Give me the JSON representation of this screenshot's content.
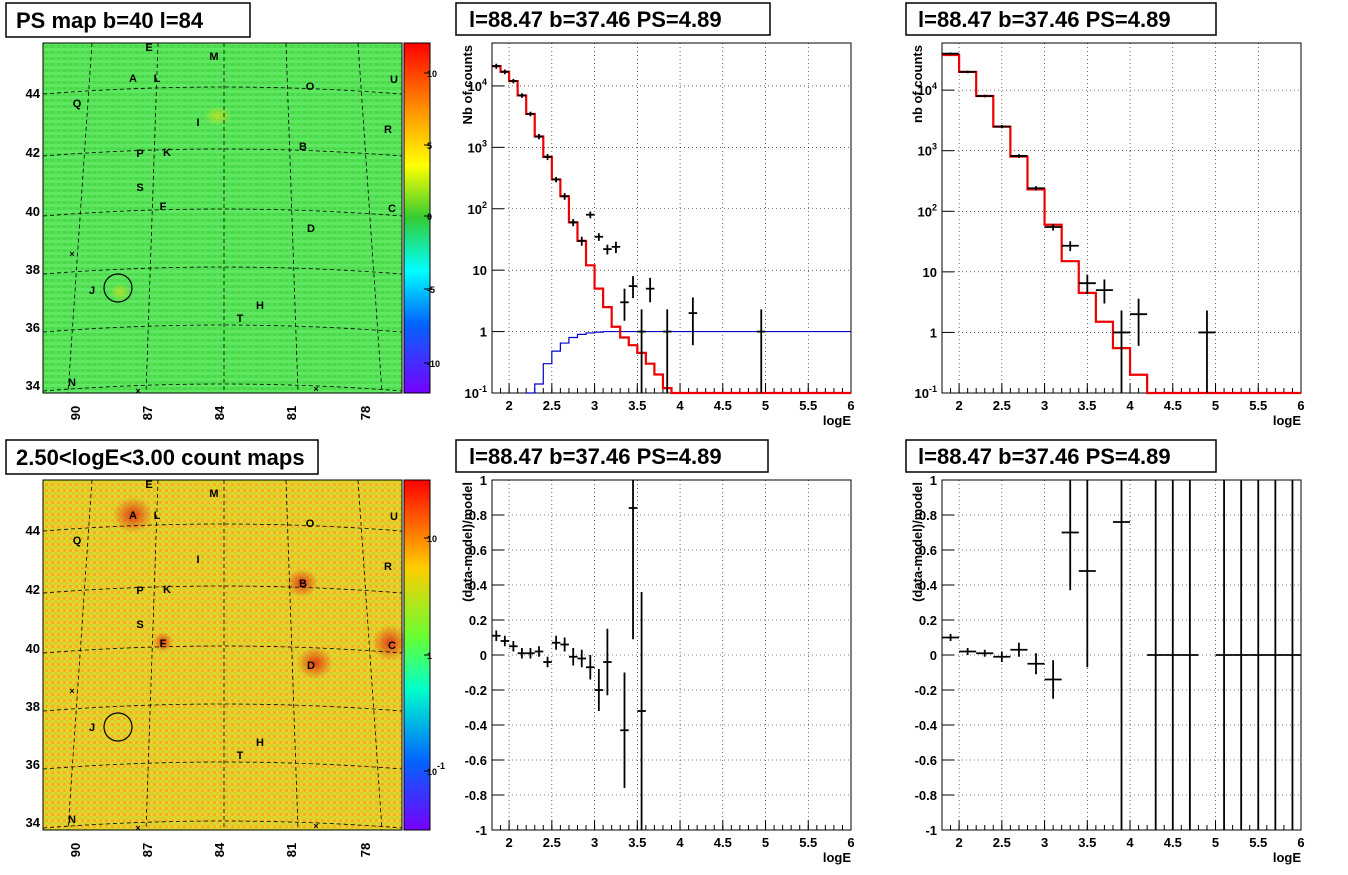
{
  "chart_data": [
    {
      "id": "map1",
      "type": "heatmap",
      "title": "PS map b=40 l=84",
      "x_ticks": [
        "90",
        "87",
        "84",
        "81",
        "78"
      ],
      "y_ticks": [
        "44",
        "42",
        "40",
        "38",
        "36",
        "34"
      ],
      "colorbar_ticks": [
        "10",
        "5",
        "0",
        "-5",
        "-10"
      ],
      "sources": [
        "E",
        "M",
        "A",
        "L",
        "U",
        "O",
        "Q",
        "I",
        "R",
        "P",
        "K",
        "B",
        "S",
        "F",
        "C",
        "D",
        "J",
        "H",
        "T",
        "N"
      ],
      "colormap": "diverging",
      "circle": {
        "l": 88.47,
        "b": 37.46
      }
    },
    {
      "id": "spec1",
      "type": "line",
      "title": "l=88.47 b=37.46 PS=4.89",
      "xlabel": "logE",
      "ylabel": "Nb of counts",
      "yscale": "log",
      "xlim": [
        1.8,
        6.0
      ],
      "ylim": [
        0.1,
        50000
      ],
      "x_ticks": [
        "2",
        "2.5",
        "3",
        "3.5",
        "4",
        "4.5",
        "5",
        "5.5",
        "6"
      ],
      "y_ticks": [
        "10^{-1}",
        "1",
        "10",
        "10^{2}",
        "10^{3}",
        "10^{4}"
      ],
      "model_step": {
        "edges": [
          1.8,
          1.9,
          2.0,
          2.1,
          2.2,
          2.3,
          2.4,
          2.5,
          2.6,
          2.7,
          2.8,
          2.9,
          3.0,
          3.1,
          3.2,
          3.3,
          3.4,
          3.5,
          3.6,
          3.7,
          3.8,
          3.9,
          4.0,
          4.1,
          6.0
        ],
        "values": [
          21000,
          17000,
          12000,
          7000,
          3500,
          1500,
          700,
          300,
          160,
          60,
          30,
          12,
          5,
          2.5,
          1.2,
          0.8,
          0.6,
          0.45,
          0.3,
          0.2,
          0.12,
          0.1,
          0.1,
          0.1
        ]
      },
      "blue_step": {
        "edges": [
          2.2,
          2.3,
          2.4,
          2.5,
          2.6,
          2.7,
          2.8,
          2.9,
          3.0,
          3.1,
          3.2,
          6.0
        ],
        "values": [
          0.1,
          0.14,
          0.3,
          0.48,
          0.65,
          0.8,
          0.9,
          0.95,
          0.98,
          1.0,
          1.0
        ]
      },
      "data_points": [
        {
          "x": 1.85,
          "y": 21000,
          "lo": 19000,
          "hi": 23000
        },
        {
          "x": 1.95,
          "y": 17000,
          "lo": 15500,
          "hi": 18500
        },
        {
          "x": 2.05,
          "y": 12000,
          "lo": 11000,
          "hi": 13000
        },
        {
          "x": 2.15,
          "y": 7000,
          "lo": 6400,
          "hi": 7600
        },
        {
          "x": 2.25,
          "y": 3500,
          "lo": 3200,
          "hi": 3800
        },
        {
          "x": 2.35,
          "y": 1500,
          "lo": 1350,
          "hi": 1650
        },
        {
          "x": 2.45,
          "y": 700,
          "lo": 620,
          "hi": 780
        },
        {
          "x": 2.55,
          "y": 300,
          "lo": 270,
          "hi": 330
        },
        {
          "x": 2.65,
          "y": 160,
          "lo": 140,
          "hi": 180
        },
        {
          "x": 2.75,
          "y": 60,
          "lo": 52,
          "hi": 68
        },
        {
          "x": 2.85,
          "y": 30,
          "lo": 25,
          "hi": 35
        },
        {
          "x": 2.95,
          "y": 80,
          "lo": 70,
          "hi": 90
        },
        {
          "x": 3.05,
          "y": 35,
          "lo": 30,
          "hi": 40
        },
        {
          "x": 3.15,
          "y": 22,
          "lo": 18,
          "hi": 26
        },
        {
          "x": 3.25,
          "y": 24,
          "lo": 19,
          "hi": 29
        },
        {
          "x": 3.35,
          "y": 3,
          "lo": 1.5,
          "hi": 5
        },
        {
          "x": 3.45,
          "y": 5.5,
          "lo": 3.5,
          "hi": 8
        },
        {
          "x": 3.65,
          "y": 5,
          "lo": 3,
          "hi": 7.5
        },
        {
          "x": 3.55,
          "y": 1,
          "lo": 0.1,
          "hi": 2.3
        },
        {
          "x": 3.85,
          "y": 1,
          "lo": 0.1,
          "hi": 2.3
        },
        {
          "x": 4.15,
          "y": 2,
          "lo": 0.6,
          "hi": 3.6
        },
        {
          "x": 4.95,
          "y": 1,
          "lo": 0.1,
          "hi": 2.3
        }
      ]
    },
    {
      "id": "spec2",
      "type": "line",
      "title": "l=88.47 b=37.46 PS=4.89",
      "xlabel": "logE",
      "ylabel": "nb of counts",
      "yscale": "log",
      "xlim": [
        1.8,
        6.0
      ],
      "ylim": [
        0.1,
        60000
      ],
      "x_ticks": [
        "2",
        "2.5",
        "3",
        "3.5",
        "4",
        "4.5",
        "5",
        "5.5",
        "6"
      ],
      "y_ticks": [
        "10^{-1}",
        "1",
        "10",
        "10^{2}",
        "10^{3}",
        "10^{4}"
      ],
      "model_step": {
        "edges": [
          1.8,
          2.0,
          2.2,
          2.4,
          2.6,
          2.8,
          3.0,
          3.2,
          3.4,
          3.6,
          3.8,
          4.0,
          4.2,
          6.0
        ],
        "values": [
          38000,
          20000,
          8000,
          2500,
          800,
          230,
          60,
          15,
          4.5,
          1.5,
          0.55,
          0.2,
          0.1
        ]
      },
      "data_points": [
        {
          "x": 1.9,
          "y": 40000,
          "lo": 38000,
          "hi": 42000
        },
        {
          "x": 2.1,
          "y": 20000,
          "lo": 19000,
          "hi": 21000
        },
        {
          "x": 2.3,
          "y": 8000,
          "lo": 7600,
          "hi": 8400
        },
        {
          "x": 2.5,
          "y": 2500,
          "lo": 2350,
          "hi": 2650
        },
        {
          "x": 2.7,
          "y": 820,
          "lo": 760,
          "hi": 880
        },
        {
          "x": 2.9,
          "y": 240,
          "lo": 220,
          "hi": 260
        },
        {
          "x": 3.1,
          "y": 55,
          "lo": 48,
          "hi": 62
        },
        {
          "x": 3.3,
          "y": 27,
          "lo": 22,
          "hi": 32
        },
        {
          "x": 3.5,
          "y": 6.5,
          "lo": 4.3,
          "hi": 9
        },
        {
          "x": 3.7,
          "y": 5,
          "lo": 3,
          "hi": 7.5
        },
        {
          "x": 3.9,
          "y": 1,
          "lo": 0.1,
          "hi": 2.3
        },
        {
          "x": 4.1,
          "y": 2,
          "lo": 0.6,
          "hi": 3.6
        },
        {
          "x": 4.9,
          "y": 1,
          "lo": 0.1,
          "hi": 2.3
        }
      ]
    },
    {
      "id": "map2",
      "type": "heatmap",
      "title": "2.50<logE<3.00 count maps",
      "x_ticks": [
        "90",
        "87",
        "84",
        "81",
        "78"
      ],
      "y_ticks": [
        "44",
        "42",
        "40",
        "38",
        "36",
        "34"
      ],
      "colorbar_ticks": [
        "10",
        "1",
        "10^{-1}"
      ],
      "sources": [
        "E",
        "M",
        "A",
        "L",
        "U",
        "O",
        "Q",
        "I",
        "R",
        "P",
        "K",
        "B",
        "S",
        "F",
        "C",
        "D",
        "J",
        "H",
        "T",
        "N"
      ],
      "colormap": "log"
    },
    {
      "id": "resid1",
      "type": "scatter",
      "title": "l=88.47 b=37.46 PS=4.89",
      "xlabel": "logE",
      "ylabel": "(data-model)/model",
      "xlim": [
        1.8,
        6.0
      ],
      "ylim": [
        -1,
        1
      ],
      "x_ticks": [
        "2",
        "2.5",
        "3",
        "3.5",
        "4",
        "4.5",
        "5",
        "5.5",
        "6"
      ],
      "y_ticks": [
        "-1",
        "-0.8",
        "-0.6",
        "-0.4",
        "-0.2",
        "0",
        "0.2",
        "0.4",
        "0.6",
        "0.8",
        "1"
      ],
      "points": [
        {
          "x": 1.85,
          "y": 0.11,
          "e": 0.03
        },
        {
          "x": 1.95,
          "y": 0.08,
          "e": 0.03
        },
        {
          "x": 2.05,
          "y": 0.05,
          "e": 0.03
        },
        {
          "x": 2.15,
          "y": 0.01,
          "e": 0.03
        },
        {
          "x": 2.25,
          "y": 0.01,
          "e": 0.03
        },
        {
          "x": 2.35,
          "y": 0.02,
          "e": 0.03
        },
        {
          "x": 2.45,
          "y": -0.04,
          "e": 0.03
        },
        {
          "x": 2.55,
          "y": 0.07,
          "e": 0.04
        },
        {
          "x": 2.65,
          "y": 0.06,
          "e": 0.04
        },
        {
          "x": 2.75,
          "y": -0.01,
          "e": 0.05
        },
        {
          "x": 2.85,
          "y": -0.02,
          "e": 0.05
        },
        {
          "x": 2.95,
          "y": -0.07,
          "e": 0.07
        },
        {
          "x": 3.05,
          "y": -0.2,
          "e": 0.12
        },
        {
          "x": 3.15,
          "y": -0.04,
          "e": 0.19
        },
        {
          "x": 3.35,
          "y": -0.43,
          "e": 0.33
        },
        {
          "x": 3.45,
          "y": 0.84,
          "e": 0.75
        },
        {
          "x": 3.55,
          "y": -0.32,
          "e": 0.68
        }
      ]
    },
    {
      "id": "resid2",
      "type": "scatter",
      "title": "l=88.47 b=37.46 PS=4.89",
      "xlabel": "logE",
      "ylabel": "(data-model)/model",
      "xlim": [
        1.8,
        6.0
      ],
      "ylim": [
        -1,
        1
      ],
      "x_ticks": [
        "2",
        "2.5",
        "3",
        "3.5",
        "4",
        "4.5",
        "5",
        "5.5",
        "6"
      ],
      "y_ticks": [
        "-1",
        "-0.8",
        "-0.6",
        "-0.4",
        "-0.2",
        "0",
        "0.2",
        "0.4",
        "0.6",
        "0.8",
        "1"
      ],
      "points": [
        {
          "x": 1.9,
          "y": 0.1,
          "e": 0.02
        },
        {
          "x": 2.1,
          "y": 0.02,
          "e": 0.02
        },
        {
          "x": 2.3,
          "y": 0.01,
          "e": 0.02
        },
        {
          "x": 2.5,
          "y": -0.01,
          "e": 0.03
        },
        {
          "x": 2.7,
          "y": 0.03,
          "e": 0.04
        },
        {
          "x": 2.9,
          "y": -0.05,
          "e": 0.06
        },
        {
          "x": 3.1,
          "y": -0.14,
          "e": 0.11
        },
        {
          "x": 3.3,
          "y": 0.7,
          "e": 0.33
        },
        {
          "x": 3.5,
          "y": 0.48,
          "e": 0.55
        },
        {
          "x": 3.9,
          "y": 0.76,
          "e": 1.8
        },
        {
          "x": 4.3,
          "y": 0,
          "e": 2.0
        },
        {
          "x": 4.5,
          "y": 0,
          "e": 2.0
        },
        {
          "x": 4.7,
          "y": 0,
          "e": 2.0
        },
        {
          "x": 5.1,
          "y": 0,
          "e": 2.0
        },
        {
          "x": 5.3,
          "y": 0,
          "e": 2.0
        },
        {
          "x": 5.5,
          "y": 0,
          "e": 2.0
        },
        {
          "x": 5.7,
          "y": 0,
          "e": 2.0
        },
        {
          "x": 5.9,
          "y": 0,
          "e": 2.0
        }
      ]
    }
  ]
}
